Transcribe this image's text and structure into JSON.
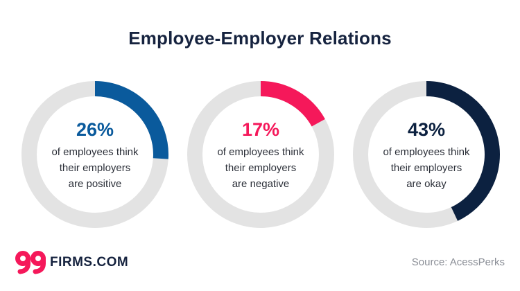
{
  "title": "Employee-Employer Relations",
  "chart_data": {
    "type": "donut",
    "title": "Employee-Employer Relations",
    "series": [
      {
        "name": "are positive",
        "value": 26,
        "label": "26%",
        "description": "of employees think\ntheir employers\nare positive",
        "color": "#0a5a9c"
      },
      {
        "name": "are negative",
        "value": 17,
        "label": "17%",
        "description": "of employees think\ntheir employers\nare negative",
        "color": "#f5185a"
      },
      {
        "name": "are okay",
        "value": 43,
        "label": "43%",
        "description": "of employees think\ntheir employers\nare okay",
        "color": "#0c2140"
      }
    ],
    "track_color": "#e3e3e3",
    "max": 100
  },
  "footer": {
    "logo_text": "FIRMS.COM",
    "logo_mark": "99",
    "source": "Source: AcessPerks"
  },
  "colors": {
    "brand_red": "#f5185a",
    "navy": "#16233f"
  }
}
